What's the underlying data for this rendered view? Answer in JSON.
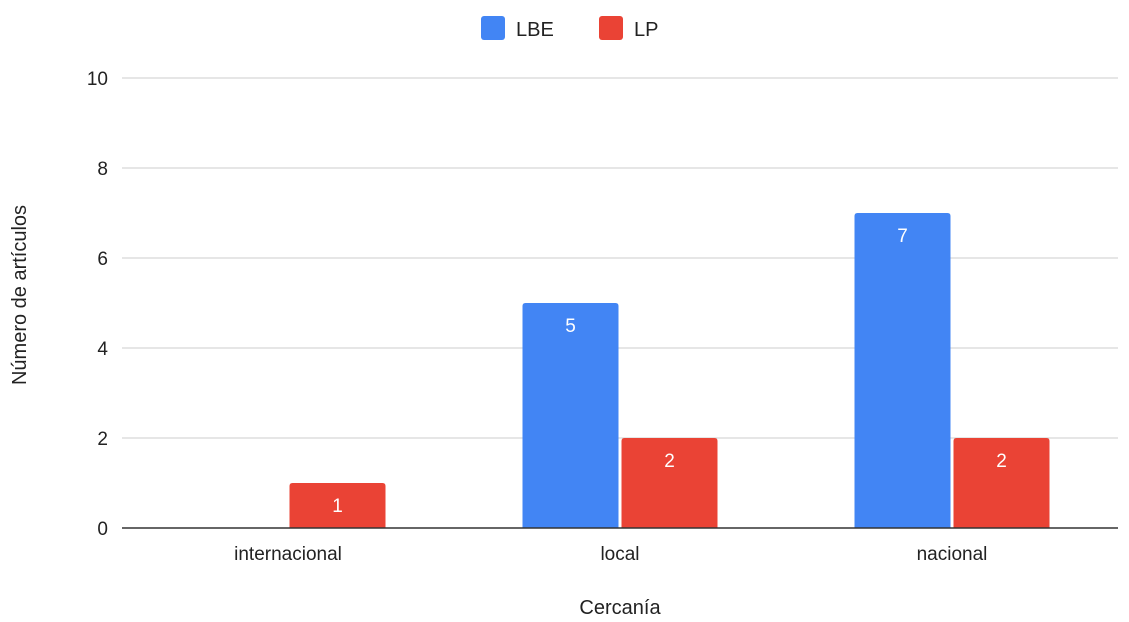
{
  "chart_data": {
    "type": "bar",
    "title": "",
    "xlabel": "Cercanía",
    "ylabel": "Número de artículos",
    "categories": [
      "internacional",
      "local",
      "nacional"
    ],
    "series": [
      {
        "name": "LBE",
        "values": [
          0,
          5,
          7
        ],
        "color": "#4285f4"
      },
      {
        "name": "LP",
        "values": [
          1,
          2,
          2
        ],
        "color": "#ea4335"
      }
    ],
    "ylim": [
      0,
      10
    ],
    "yticks": [
      0,
      2,
      4,
      6,
      8,
      10
    ],
    "grid": true,
    "legend_position": "top",
    "data_labels": true
  }
}
